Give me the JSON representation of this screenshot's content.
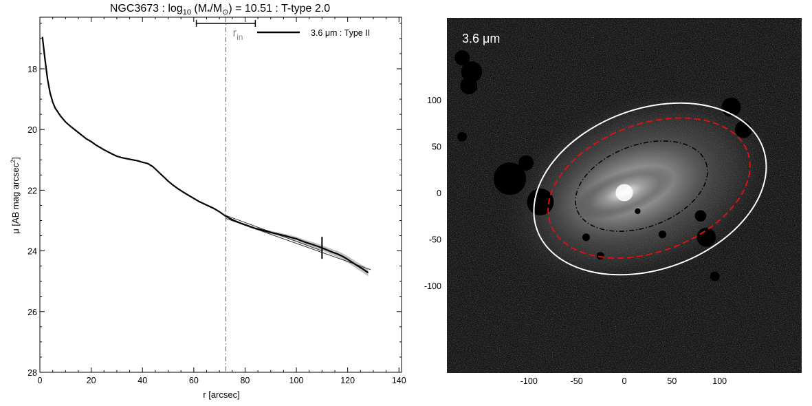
{
  "title": {
    "prefix": "NGC3673 : log",
    "log_sub": "10",
    "mass_open": " (M",
    "mass_sub": "*",
    "mass_mid": "/M",
    "sun_sub": "⊙",
    "suffix": ") = 10.51 : T-type 2.0"
  },
  "chart_data": [
    {
      "type": "line",
      "xlabel": "r [arcsec]",
      "ylabel": {
        "main": "μ [AB mag arcsec",
        "sup": "2",
        "end": "]"
      },
      "xlim": [
        0,
        141
      ],
      "ylim": [
        28,
        16.3
      ],
      "y_inverted": true,
      "x_ticks": [
        0,
        20,
        40,
        60,
        80,
        100,
        120,
        140
      ],
      "y_ticks": [
        18,
        20,
        22,
        24,
        26,
        28
      ],
      "legend": {
        "label": "3.6 μm : Type II",
        "position": "top-right"
      },
      "series": [
        {
          "name": "3.6 μm : Type II",
          "x": [
            1,
            2,
            3,
            4,
            5,
            6,
            8,
            10,
            12,
            15,
            18,
            20,
            22,
            25,
            28,
            30,
            32,
            35,
            38,
            40,
            41,
            42,
            43,
            44,
            45,
            46,
            47,
            48,
            50,
            52,
            54,
            56,
            58,
            60,
            62,
            64,
            66,
            68,
            70,
            72,
            74,
            76,
            78,
            80,
            82,
            84,
            86,
            88,
            90,
            92,
            94,
            96,
            98,
            100,
            102,
            104,
            106,
            108,
            110,
            112,
            114,
            116,
            118,
            120,
            122,
            124,
            126,
            128
          ],
          "y": [
            16.95,
            17.7,
            18.35,
            18.8,
            19.1,
            19.3,
            19.55,
            19.75,
            19.9,
            20.1,
            20.3,
            20.4,
            20.52,
            20.67,
            20.8,
            20.88,
            20.93,
            20.98,
            21.03,
            21.08,
            21.1,
            21.12,
            21.17,
            21.22,
            21.3,
            21.38,
            21.46,
            21.54,
            21.7,
            21.84,
            21.96,
            22.07,
            22.17,
            22.27,
            22.37,
            22.45,
            22.53,
            22.61,
            22.71,
            22.83,
            22.93,
            23.01,
            23.08,
            23.14,
            23.2,
            23.26,
            23.3,
            23.35,
            23.39,
            23.43,
            23.47,
            23.51,
            23.56,
            23.6,
            23.67,
            23.73,
            23.78,
            23.84,
            23.9,
            23.97,
            24.04,
            24.1,
            24.18,
            24.28,
            24.39,
            24.5,
            24.6,
            24.72
          ]
        }
      ],
      "fit_lines": [
        {
          "x": [
            72.5,
            129
          ],
          "y": [
            22.93,
            24.62
          ]
        },
        {
          "x": [
            72.5,
            110
          ],
          "y": [
            22.83,
            24.0
          ]
        }
      ],
      "annotations": {
        "r_in": {
          "label": "r",
          "sub": "in",
          "x": 72.5,
          "range": [
            61,
            84
          ]
        },
        "break_tick": {
          "x": 110
        }
      }
    },
    {
      "type": "image",
      "label": "3.6 μm",
      "x_ticks": [
        -100,
        -50,
        0,
        50,
        100
      ],
      "y_ticks": [
        100,
        50,
        0,
        -50,
        -100
      ],
      "xlim": [
        -186,
        186
      ],
      "ylim": [
        -194,
        188
      ],
      "ellipses": [
        {
          "style": "white-solid",
          "center": [
            27,
            4
          ],
          "semi_axes": [
            126,
            84
          ],
          "angle_deg": 20
        },
        {
          "style": "red-dashed",
          "center": [
            26,
            5
          ],
          "semi_axes": [
            110,
            67
          ],
          "angle_deg": 20
        },
        {
          "style": "black-dashdot",
          "center": [
            18,
            7
          ],
          "semi_axes": [
            72,
            43
          ],
          "angle_deg": 20
        }
      ]
    }
  ],
  "colors": {
    "background": "#ffffff",
    "axes": "#000000",
    "image_bg": "#141414",
    "r_in_label": "#888888",
    "red_ellipse": "#dd1111",
    "white_ellipse": "#ffffff",
    "profile_shade": "#9a9a9a"
  }
}
